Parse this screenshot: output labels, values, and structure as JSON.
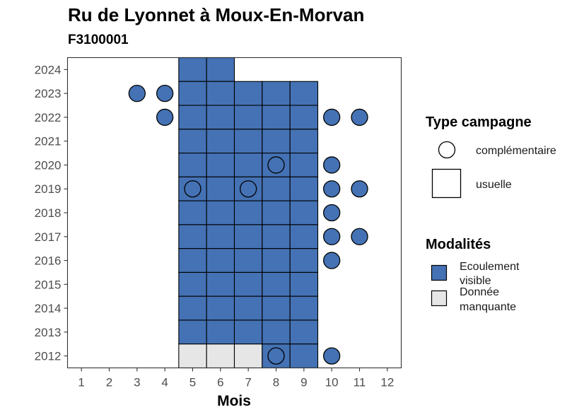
{
  "title": "Ru de Lyonnet à Moux-En-Morvan",
  "subtitle": "F3100001",
  "chart_data": {
    "type": "heatmap",
    "xlabel": "Mois",
    "ylabel": "",
    "x_ticks": [
      1,
      2,
      3,
      4,
      5,
      6,
      7,
      8,
      9,
      10,
      11,
      12
    ],
    "y_ticks": [
      2012,
      2013,
      2014,
      2015,
      2016,
      2017,
      2018,
      2019,
      2020,
      2021,
      2022,
      2023,
      2024
    ],
    "xlim": [
      0.5,
      12.5
    ],
    "ylim": [
      2011.5,
      2024.5
    ],
    "grid": false,
    "colors": {
      "Ecoulement visible": "#4472b4",
      "Donnée manquante": "#e6e6e6"
    },
    "usuelle": [
      {
        "year": 2024,
        "months": [
          5,
          6
        ],
        "modalite": "Ecoulement visible"
      },
      {
        "year": 2023,
        "months": [
          5,
          6,
          7,
          8,
          9
        ],
        "modalite": "Ecoulement visible"
      },
      {
        "year": 2022,
        "months": [
          5,
          6,
          7,
          8,
          9
        ],
        "modalite": "Ecoulement visible"
      },
      {
        "year": 2021,
        "months": [
          5,
          6,
          7,
          8,
          9
        ],
        "modalite": "Ecoulement visible"
      },
      {
        "year": 2020,
        "months": [
          5,
          6,
          7,
          8,
          9
        ],
        "modalite": "Ecoulement visible"
      },
      {
        "year": 2019,
        "months": [
          5,
          6,
          7,
          8,
          9
        ],
        "modalite": "Ecoulement visible"
      },
      {
        "year": 2018,
        "months": [
          5,
          6,
          7,
          8,
          9
        ],
        "modalite": "Ecoulement visible"
      },
      {
        "year": 2017,
        "months": [
          5,
          6,
          7,
          8,
          9
        ],
        "modalite": "Ecoulement visible"
      },
      {
        "year": 2016,
        "months": [
          5,
          6,
          7,
          8,
          9
        ],
        "modalite": "Ecoulement visible"
      },
      {
        "year": 2015,
        "months": [
          5,
          6,
          7,
          8,
          9
        ],
        "modalite": "Ecoulement visible"
      },
      {
        "year": 2014,
        "months": [
          5,
          6,
          7,
          8,
          9
        ],
        "modalite": "Ecoulement visible"
      },
      {
        "year": 2013,
        "months": [
          5,
          6,
          7,
          8,
          9
        ],
        "modalite": "Ecoulement visible"
      },
      {
        "year": 2012,
        "months": [
          5,
          6,
          7
        ],
        "modalite": "Donnée manquante"
      },
      {
        "year": 2012,
        "months": [
          8,
          9
        ],
        "modalite": "Ecoulement visible"
      }
    ],
    "complementaire": [
      {
        "year": 2023,
        "month": 3,
        "modalite": "Ecoulement visible"
      },
      {
        "year": 2023,
        "month": 4,
        "modalite": "Ecoulement visible"
      },
      {
        "year": 2022,
        "month": 4,
        "modalite": "Ecoulement visible"
      },
      {
        "year": 2022,
        "month": 10,
        "modalite": "Ecoulement visible"
      },
      {
        "year": 2022,
        "month": 11,
        "modalite": "Ecoulement visible"
      },
      {
        "year": 2020,
        "month": 8,
        "modalite": "Ecoulement visible"
      },
      {
        "year": 2020,
        "month": 10,
        "modalite": "Ecoulement visible"
      },
      {
        "year": 2019,
        "month": 5,
        "modalite": "Ecoulement visible"
      },
      {
        "year": 2019,
        "month": 7,
        "modalite": "Ecoulement visible"
      },
      {
        "year": 2019,
        "month": 10,
        "modalite": "Ecoulement visible"
      },
      {
        "year": 2019,
        "month": 11,
        "modalite": "Ecoulement visible"
      },
      {
        "year": 2018,
        "month": 10,
        "modalite": "Ecoulement visible"
      },
      {
        "year": 2017,
        "month": 10,
        "modalite": "Ecoulement visible"
      },
      {
        "year": 2017,
        "month": 11,
        "modalite": "Ecoulement visible"
      },
      {
        "year": 2016,
        "month": 10,
        "modalite": "Ecoulement visible"
      },
      {
        "year": 2012,
        "month": 8,
        "modalite": "Ecoulement visible"
      },
      {
        "year": 2012,
        "month": 10,
        "modalite": "Ecoulement visible"
      }
    ],
    "legend": {
      "placement": "right",
      "type_title": "Type campagne",
      "type_items": [
        "complémentaire",
        "usuelle"
      ],
      "modalites_title": "Modalités",
      "modalites_items": [
        {
          "lines": [
            "Ecoulement",
            "visible"
          ],
          "color": "#4472b4"
        },
        {
          "lines": [
            "Donnée",
            "manquante"
          ],
          "color": "#e6e6e6"
        }
      ]
    }
  }
}
